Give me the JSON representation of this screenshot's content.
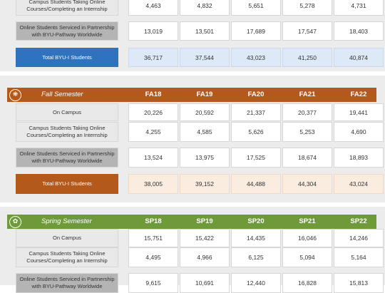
{
  "winter": {
    "campus_online_label": "Campus Students Taking Online Courses/Completing an Internship",
    "campus_online": [
      "4,463",
      "4,832",
      "5,651",
      "5,278",
      "4,731"
    ],
    "pathway_label": "Online Students Serviced in Partnership with BYU-Pathway Worldwide",
    "pathway": [
      "13,019",
      "13,501",
      "17,689",
      "17,547",
      "18,403"
    ],
    "total_label": "Total BYU-I Students",
    "total": [
      "36,717",
      "37,544",
      "43,023",
      "41,250",
      "40,874"
    ]
  },
  "fall": {
    "semester": "Fall Semester",
    "icon": "maple-leaf-icon",
    "header_color": "#b4591c",
    "columns": [
      "FA18",
      "FA19",
      "FA20",
      "FA21",
      "FA22"
    ],
    "on_campus_label": "On Campus",
    "on_campus": [
      "20,226",
      "20,592",
      "21,337",
      "20,377",
      "19,441"
    ],
    "campus_online_label": "Campus Students Taking Online Courses/Completing an Internship",
    "campus_online": [
      "4,255",
      "4,585",
      "5,626",
      "5,253",
      "4,690"
    ],
    "pathway_label": "Online Students Serviced in Partnership with BYU-Pathway Worldwide",
    "pathway": [
      "13,524",
      "13,975",
      "17,525",
      "18,674",
      "18,893"
    ],
    "total_label": "Total BYU-I Students",
    "total": [
      "38,005",
      "39,152",
      "44,488",
      "44,304",
      "43,024"
    ]
  },
  "spring": {
    "semester": "Spring Semester",
    "icon": "flower-icon",
    "header_color": "#6f9a3a",
    "columns": [
      "SP18",
      "SP19",
      "SP20",
      "SP21",
      "SP22"
    ],
    "on_campus_label": "On Campus",
    "on_campus": [
      "15,751",
      "15,422",
      "14,435",
      "16,046",
      "14,246"
    ],
    "campus_online_label": "Campus Students Taking Online Courses/Completing an Internship",
    "campus_online": [
      "4,495",
      "4,966",
      "6,125",
      "5,094",
      "5,164"
    ],
    "pathway_label": "Online Students Serviced in Partnership with BYU-Pathway Worldwide",
    "pathway": [
      "9,615",
      "10,691",
      "12,440",
      "16,828",
      "15,813"
    ]
  }
}
